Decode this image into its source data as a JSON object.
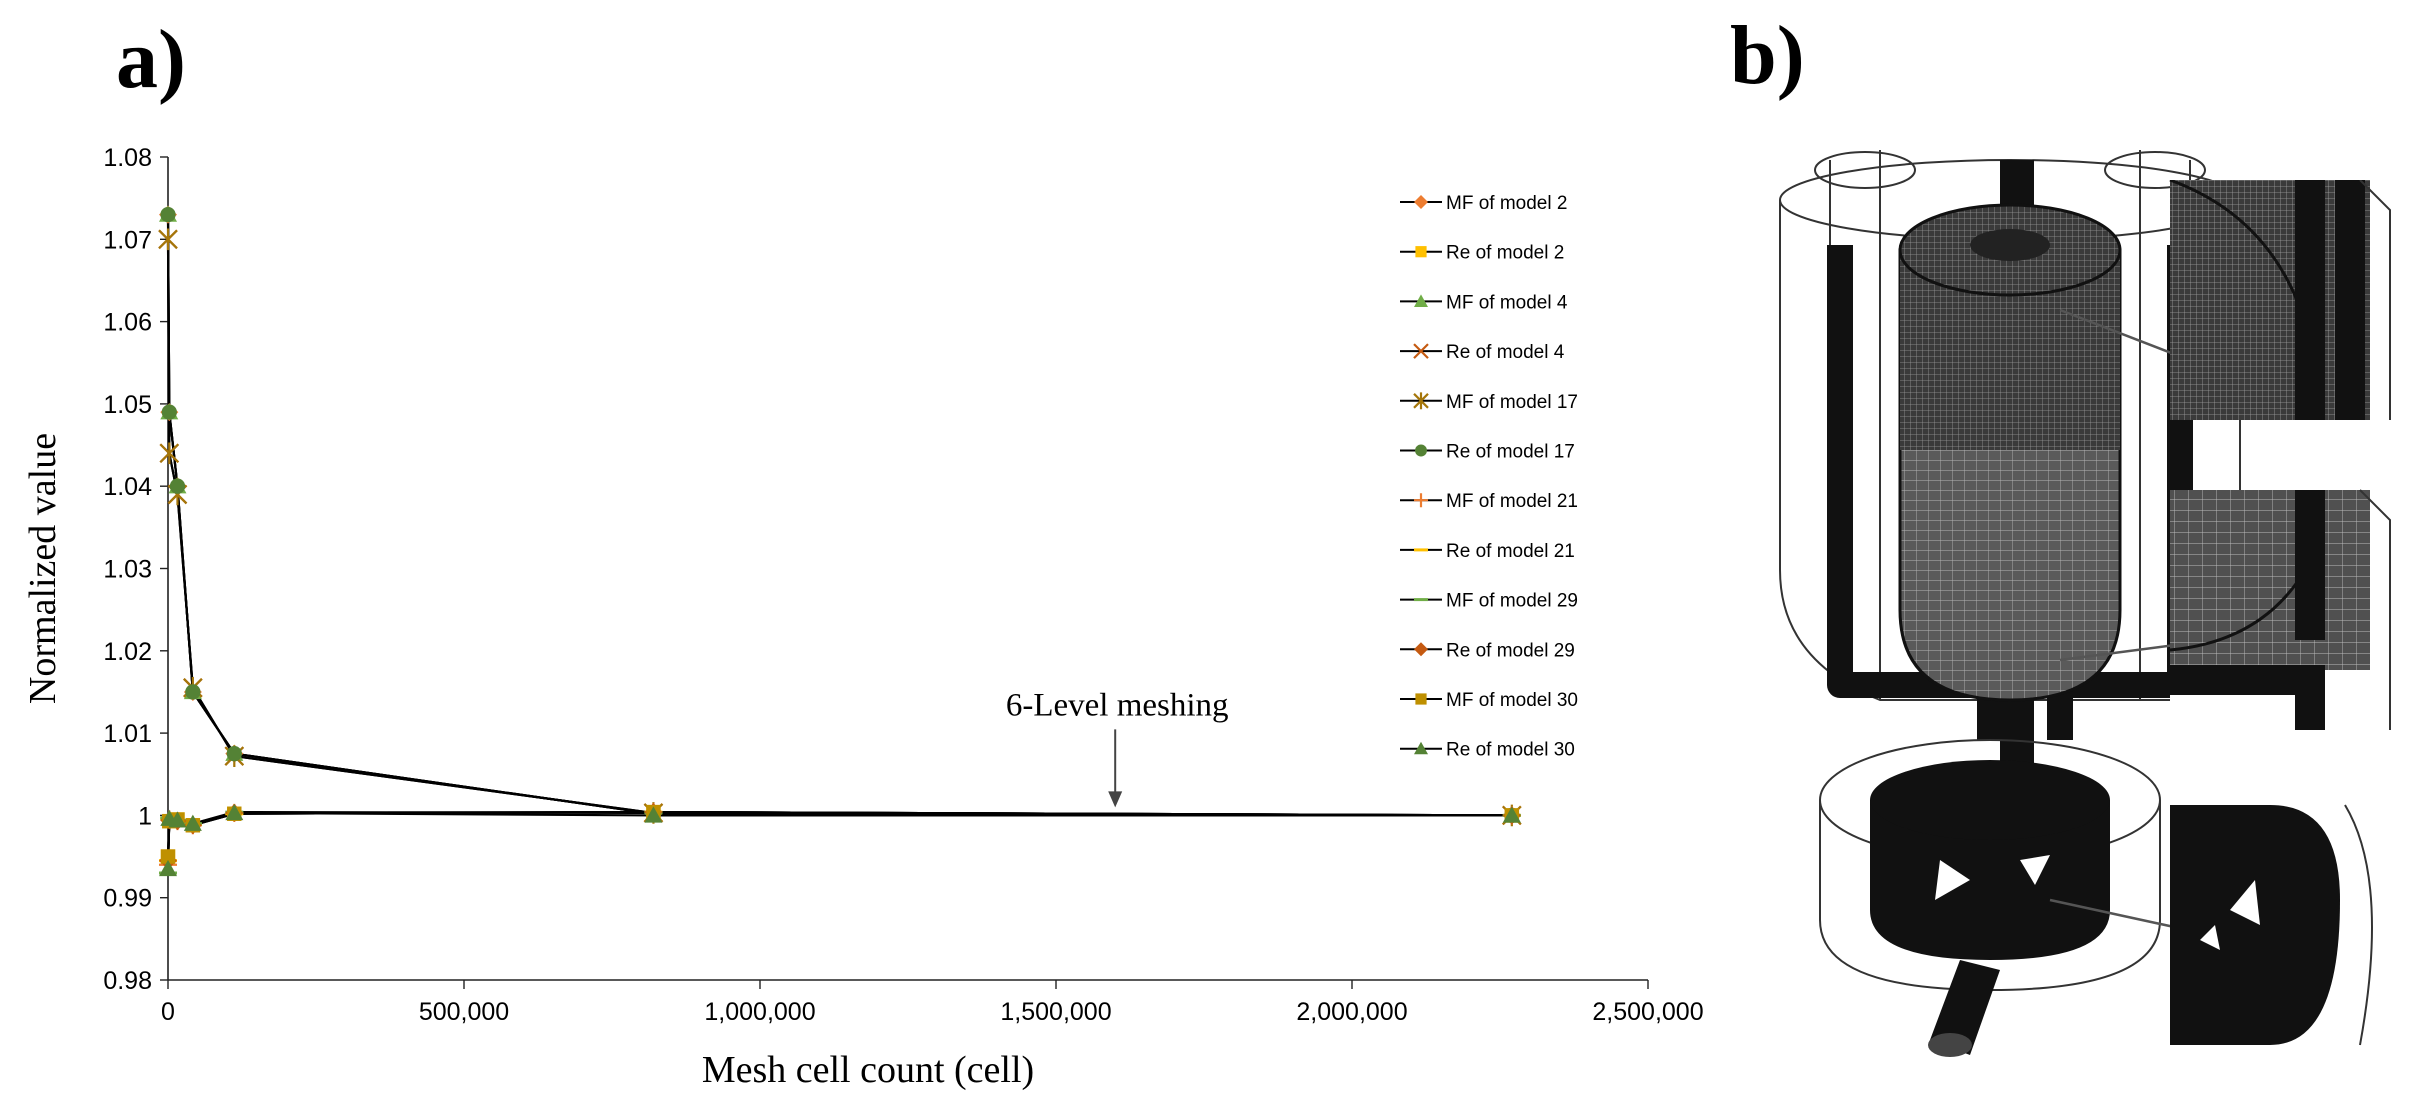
{
  "panels": {
    "a": "a)",
    "b": "b)"
  },
  "colors": {
    "line": "#000000",
    "orange": "#ED7D31",
    "gold": "#FFC000",
    "green": "#70AD47",
    "brown": "#C55A11",
    "bronze": "#A5760A",
    "darkgreen": "#548235",
    "olive": "#BF9000"
  },
  "chart_data": {
    "type": "scatter",
    "xlabel": "Mesh cell count (cell)",
    "ylabel": "Normalized value",
    "xlim": [
      0,
      2500000
    ],
    "ylim": [
      0.98,
      1.08
    ],
    "x_ticks": [
      "0",
      "500,000",
      "1,000,000",
      "1,500,000",
      "2,000,000",
      "2,500,000"
    ],
    "x_tick_values": [
      0,
      500000,
      1000000,
      1500000,
      2000000,
      2500000
    ],
    "y_ticks": [
      "0.98",
      "0.99",
      "1",
      "1.01",
      "1.02",
      "1.03",
      "1.04",
      "1.05",
      "1.06",
      "1.07",
      "1.08"
    ],
    "y_tick_values": [
      0.98,
      0.99,
      1.0,
      1.01,
      1.02,
      1.03,
      1.04,
      1.05,
      1.06,
      1.07,
      1.08
    ],
    "grid": false,
    "legend_position": "right",
    "x": [
      0,
      2200,
      16000,
      42000,
      112000,
      820000,
      2270000
    ],
    "series": [
      {
        "name": "MF of model 2",
        "marker": "diamond",
        "color": "#ED7D31",
        "values": [
          1.073,
          1.049,
          1.04,
          1.015,
          1.0075,
          1.0002,
          1.0
        ]
      },
      {
        "name": "Re of model 2",
        "marker": "square",
        "color": "#FFC000",
        "values": [
          0.995,
          0.9993,
          0.9995,
          0.9988,
          1.0002,
          1.0004,
          1.0
        ]
      },
      {
        "name": "MF of model 4",
        "marker": "triangle",
        "color": "#70AD47",
        "values": [
          1.073,
          1.049,
          1.04,
          1.015,
          1.0075,
          1.0002,
          1.0
        ]
      },
      {
        "name": "Re of model 4",
        "marker": "x",
        "color": "#C55A11",
        "values": [
          1.07,
          1.044,
          1.039,
          1.0155,
          1.0072,
          1.0003,
          1.0
        ]
      },
      {
        "name": "MF of model 17",
        "marker": "star",
        "color": "#A5760A",
        "values": [
          1.07,
          1.044,
          1.039,
          1.0155,
          1.0072,
          1.0003,
          1.0
        ]
      },
      {
        "name": "Re of model 17",
        "marker": "circle",
        "color": "#548235",
        "values": [
          1.073,
          1.049,
          1.04,
          1.015,
          1.0075,
          1.0002,
          1.0
        ]
      },
      {
        "name": "MF of model 21",
        "marker": "plus",
        "color": "#ED7D31",
        "values": [
          0.994,
          0.9995,
          0.9993,
          0.9988,
          1.0003,
          1.0004,
          1.0
        ]
      },
      {
        "name": "Re of model 21",
        "marker": "dash",
        "color": "#FFC000",
        "values": [
          0.9945,
          0.9996,
          0.9993,
          0.9989,
          1.0002,
          1.0004,
          1.0
        ]
      },
      {
        "name": "MF of model 29",
        "marker": "dash",
        "color": "#70AD47",
        "values": [
          0.993,
          0.9997,
          0.9994,
          0.999,
          1.0004,
          1.0003,
          1.0
        ]
      },
      {
        "name": "Re of model 29",
        "marker": "diamond",
        "color": "#C55A11",
        "values": [
          0.9945,
          0.9994,
          0.9993,
          0.9988,
          1.0003,
          1.0004,
          1.0
        ]
      },
      {
        "name": "MF of model 30",
        "marker": "square",
        "color": "#BF9000",
        "values": [
          0.995,
          0.9993,
          0.9995,
          0.9988,
          1.0002,
          1.0004,
          1.0
        ]
      },
      {
        "name": "Re of model 30",
        "marker": "triangle",
        "color": "#548235",
        "values": [
          0.9935,
          0.9996,
          0.9994,
          0.999,
          1.0003,
          1.0,
          1.0
        ]
      }
    ],
    "annotations": [
      {
        "text": "6-Level meshing",
        "x": 1600000,
        "y": 1.0
      }
    ]
  }
}
